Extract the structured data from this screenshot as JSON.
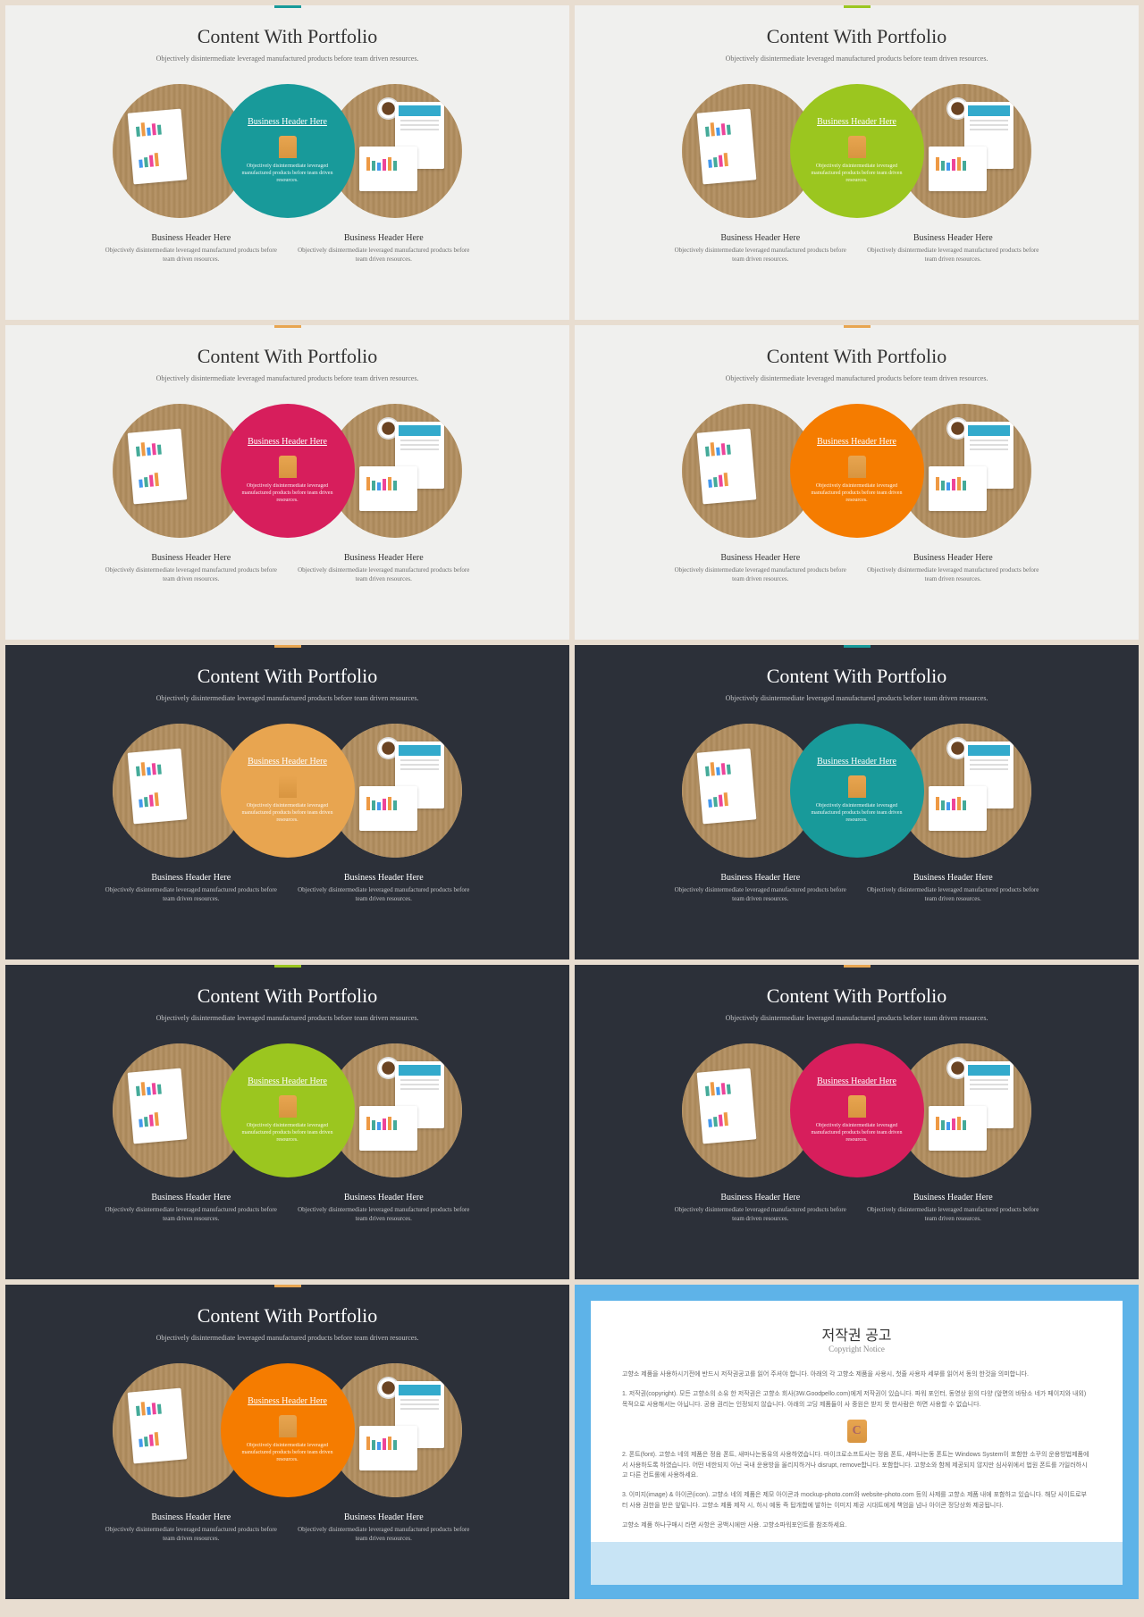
{
  "common": {
    "title": "Content With Portfolio",
    "subtitle": "Objectively disintermediate leveraged manufactured products before team driven resources.",
    "center_header": "Business Header Here",
    "center_body": "Objectively disintermediate leveraged manufactured products before team driven resources.",
    "bottom_header": "Business Header Here",
    "bottom_body": "Objectively disintermediate leveraged manufactured products before team driven resources."
  },
  "slides": [
    {
      "bg": "light",
      "accent": "#189a9a",
      "circle": "#189a9a"
    },
    {
      "bg": "light",
      "accent": "#9bc61f",
      "circle": "#9bc61f"
    },
    {
      "bg": "light",
      "accent": "#e8a550",
      "circle": "#d71e5c"
    },
    {
      "bg": "light",
      "accent": "#e8a550",
      "circle": "#f57c00"
    },
    {
      "bg": "dark",
      "accent": "#e8a550",
      "circle": "#e8a550"
    },
    {
      "bg": "dark",
      "accent": "#189a9a",
      "circle": "#189a9a"
    },
    {
      "bg": "dark",
      "accent": "#9bc61f",
      "circle": "#9bc61f"
    },
    {
      "bg": "dark",
      "accent": "#e8a550",
      "circle": "#d71e5c"
    },
    {
      "bg": "dark",
      "accent": "#e8a550",
      "circle": "#f57c00"
    }
  ],
  "copyright": {
    "title": "저작권 공고",
    "subtitle": "Copyright Notice",
    "p1": "고향소 제품을 사용하시기전에 반드시 저작권공고를 읽어 주셔야 합니다. 아래의 각 고향소 제품을 사용시, 첫줄 사용자 세부를 읽어서 동의 한것을 의미합니다.",
    "p2": "1. 저작권(copyright). 모든 고향소의 소유 한 저작권은 고향소 회사(3W.Goodpello.com)에게 저작권이 있습니다. 파워 포인터, 동영상 원의 다양 (앞면의 바탕소 네가 페이지와 내외) 목적으로 사용해서는 아닙니다. 공용 권리는 인정되지 않습니다. 아래의 고딩 제품들이 사 중원은 받지 못 한사람은 하면 사용할 수 없습니다.",
    "p3": "2. 폰트(font). 고향소 네의 제품은 정음 폰트, 새마나는동유의 사용하였습니다. 마이크로소프트사는 정음 폰트, 새마나는동 폰트는 Windows System이 포함한 소꾸의 운용방법제품에서 사용하도록 하였습니다. 어떤 네한되지 아닌 국내 운용방을 올리지하거나 disrupt, remove합니다. 포함합니다. 고향소와 함께 제공되지 않지만 심사위에서 법원 폰트를 가일러하시고 다른 컨트롤에 사용하세요.",
    "p4": "3. 이미지(image) & 아이콘(icon). 고향소 네의 제품은 제모 아이콘과 mockup-photo.com와 website-photo.com 등의 사제를 고향소 제품 내에 포함하고 있습니다. 해당 사이트로부터 사용 권한을 받은 앞밑니다. 고향소 제품 제작 시, 하시 예동 즉 탑개합에 발하는 이미지 제공 시대트에게 책엄을 넘나 아이콘 정당상화 제공됩니다.",
    "p5": "고향소 제품 하나구매시 라면 사항은 공백시에만 사용. 고향소파워포인트를 참조하세요."
  },
  "colors": {
    "page_bg": "#e8ddd0",
    "light_slide_bg": "#f0f0ee",
    "dark_slide_bg": "#2c3039",
    "copyright_border": "#5eb3e8",
    "copyright_lower": "#c8e4f5"
  }
}
